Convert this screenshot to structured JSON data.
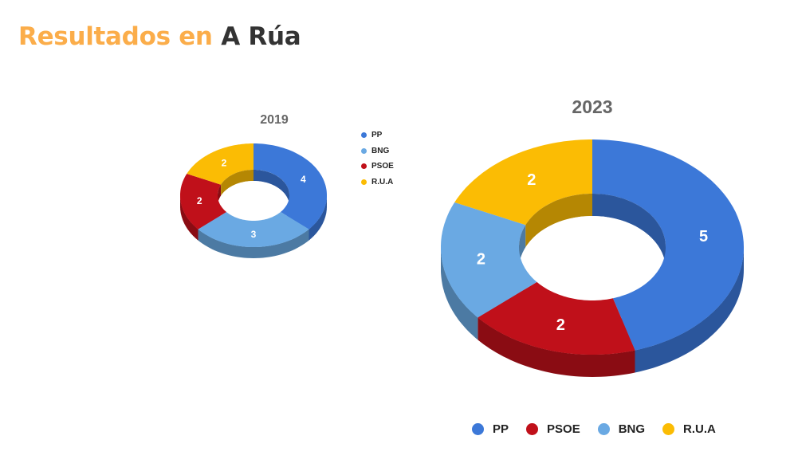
{
  "header": {
    "title_part1": "Resultados en",
    "title_part2": "A Rúa"
  },
  "colors": {
    "PP": "#3c78d8",
    "BNG": "#6aa9e3",
    "PSOE": "#c0101a",
    "R.U.A": "#fbbc04",
    "title_accent": "#fbad4a",
    "title_dark": "#333333"
  },
  "charts": {
    "c2019": {
      "title": "2019",
      "legend": [
        {
          "label": "PP",
          "color": "#3c78d8"
        },
        {
          "label": "BNG",
          "color": "#6aa9e3"
        },
        {
          "label": "PSOE",
          "color": "#c0101a"
        },
        {
          "label": "R.U.A",
          "color": "#fbbc04"
        }
      ]
    },
    "c2023": {
      "title": "2023",
      "legend": [
        {
          "label": "PP",
          "color": "#3c78d8"
        },
        {
          "label": "PSOE",
          "color": "#c0101a"
        },
        {
          "label": "BNG",
          "color": "#6aa9e3"
        },
        {
          "label": "R.U.A",
          "color": "#fbbc04"
        }
      ]
    }
  },
  "chart_data": [
    {
      "type": "pie",
      "subtype": "3d-donut",
      "title": "2019",
      "categories": [
        "PP",
        "BNG",
        "PSOE",
        "R.U.A"
      ],
      "values": [
        4,
        3,
        2,
        2
      ],
      "colors": [
        "#3c78d8",
        "#6aa9e3",
        "#c0101a",
        "#fbbc04"
      ],
      "legend_position": "right"
    },
    {
      "type": "pie",
      "subtype": "3d-donut",
      "title": "2023",
      "categories": [
        "PP",
        "PSOE",
        "BNG",
        "R.U.A"
      ],
      "values": [
        5,
        2,
        2,
        2
      ],
      "colors": [
        "#3c78d8",
        "#c0101a",
        "#6aa9e3",
        "#fbbc04"
      ],
      "legend_position": "bottom"
    }
  ]
}
